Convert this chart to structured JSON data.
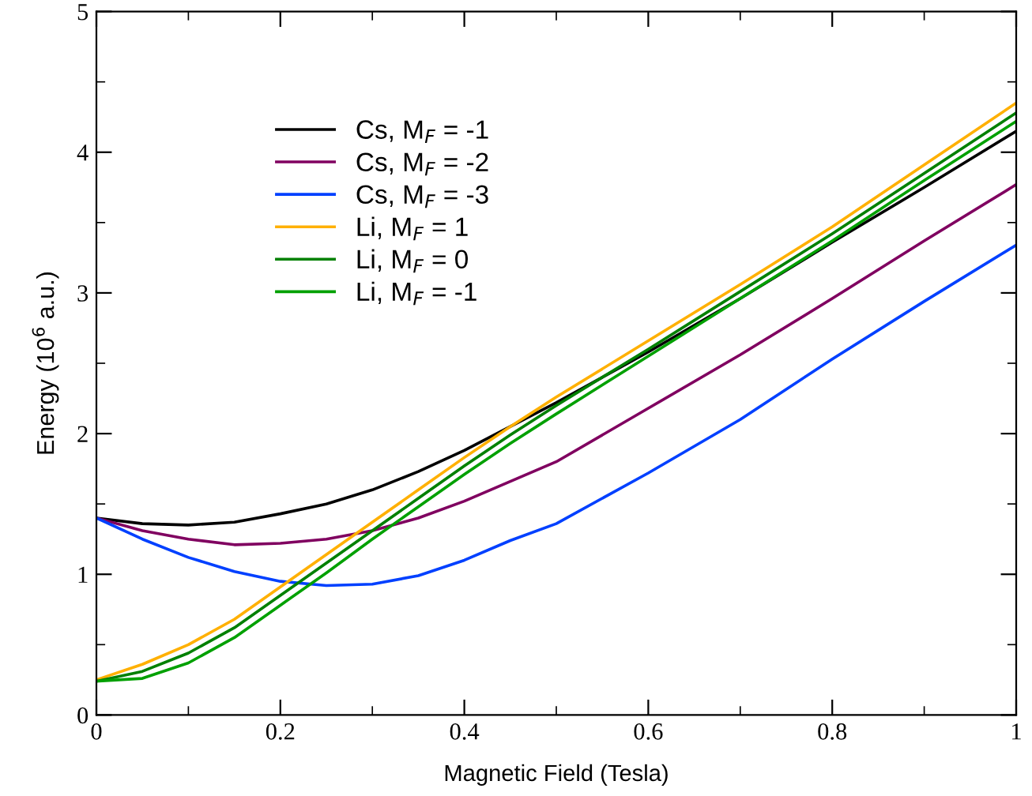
{
  "chart_data": {
    "type": "line",
    "xlabel": "Magnetic Field (Tesla)",
    "ylabel": "Energy (10$^{6}$ a.u.)",
    "xlim": [
      0,
      1
    ],
    "ylim": [
      0,
      5
    ],
    "xticks": [
      0,
      0.2,
      0.4,
      0.6,
      0.8,
      1
    ],
    "yticks": [
      0,
      1,
      2,
      3,
      4,
      5
    ],
    "grid": false,
    "legend": "top left",
    "marker": "none",
    "line_style": "solid",
    "x": [
      0,
      0.05,
      0.1,
      0.15,
      0.2,
      0.25,
      0.3,
      0.35,
      0.4,
      0.45,
      0.5,
      0.6,
      0.7,
      0.8,
      0.9,
      1
    ],
    "series": [
      {
        "name": "Cs, M$_{F}$ = -1",
        "color": "#000000",
        "values": [
          1.4,
          1.36,
          1.35,
          1.37,
          1.43,
          1.5,
          1.6,
          1.73,
          1.88,
          2.05,
          2.22,
          2.58,
          2.96,
          3.36,
          3.75,
          4.15
        ]
      },
      {
        "name": "Cs, M$_{F}$ = -2",
        "color": "#800060",
        "values": [
          1.4,
          1.31,
          1.25,
          1.21,
          1.22,
          1.25,
          1.31,
          1.4,
          1.52,
          1.66,
          1.8,
          2.18,
          2.56,
          2.96,
          3.37,
          3.77
        ]
      },
      {
        "name": "Cs, M$_{F}$ = -3",
        "color": "#0040ff",
        "values": [
          1.4,
          1.25,
          1.12,
          1.02,
          0.95,
          0.92,
          0.93,
          0.99,
          1.1,
          1.24,
          1.36,
          1.72,
          2.1,
          2.53,
          2.94,
          3.34
        ]
      },
      {
        "name": "Li, M$_{F}$ = 1",
        "color": "#ffb000",
        "values": [
          0.25,
          0.36,
          0.5,
          0.68,
          0.91,
          1.14,
          1.37,
          1.6,
          1.83,
          2.05,
          2.26,
          2.66,
          3.06,
          3.47,
          3.91,
          4.35
        ]
      },
      {
        "name": "Li, M$_{F}$ = 0",
        "color": "#008000",
        "values": [
          0.24,
          0.31,
          0.44,
          0.62,
          0.85,
          1.08,
          1.31,
          1.54,
          1.77,
          1.99,
          2.2,
          2.6,
          3.01,
          3.42,
          3.85,
          4.28
        ]
      },
      {
        "name": "Li, M$_{F}$ = -1",
        "color": "#00a000",
        "values": [
          0.24,
          0.26,
          0.37,
          0.55,
          0.78,
          1.01,
          1.25,
          1.48,
          1.71,
          1.93,
          2.14,
          2.55,
          2.96,
          3.37,
          3.8,
          4.22
        ]
      }
    ]
  }
}
